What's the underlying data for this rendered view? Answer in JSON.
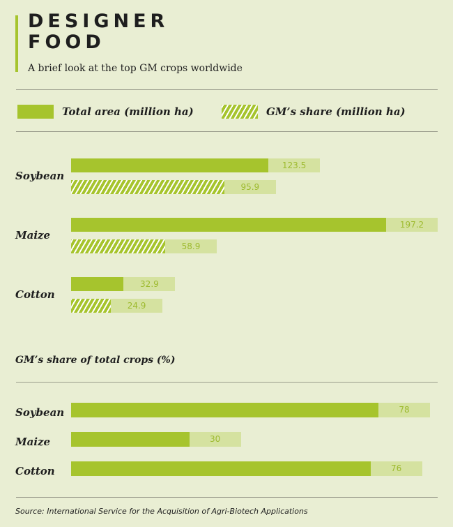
{
  "header": {
    "title_line1": "DESIGNER",
    "title_line2": "FOOD",
    "subtitle": "A brief look at the top GM crops worldwide"
  },
  "colors": {
    "accent": "#a6c42d",
    "track": "#d5e2a0",
    "background": "#e9eed3"
  },
  "chart_data": [
    {
      "type": "bar",
      "title": "",
      "legend": [
        "Total area (million ha)",
        "GM’s share (million ha)"
      ],
      "categories": [
        "Soybean",
        "Maize",
        "Cotton"
      ],
      "series": [
        {
          "name": "Total area (million ha)",
          "values": [
            123.5,
            197.2,
            32.9
          ]
        },
        {
          "name": "GM’s share (million ha)",
          "values": [
            95.9,
            58.9,
            24.9
          ]
        }
      ],
      "xlim": [
        0,
        197.2
      ]
    },
    {
      "type": "bar",
      "title": "GM’s share of total crops (%)",
      "categories": [
        "Soybean",
        "Maize",
        "Cotton"
      ],
      "values": [
        78,
        30,
        76
      ],
      "xlim": [
        0,
        78
      ]
    }
  ],
  "source": "Source: International Service for the Acquisition of Agri-Biotech Applications"
}
